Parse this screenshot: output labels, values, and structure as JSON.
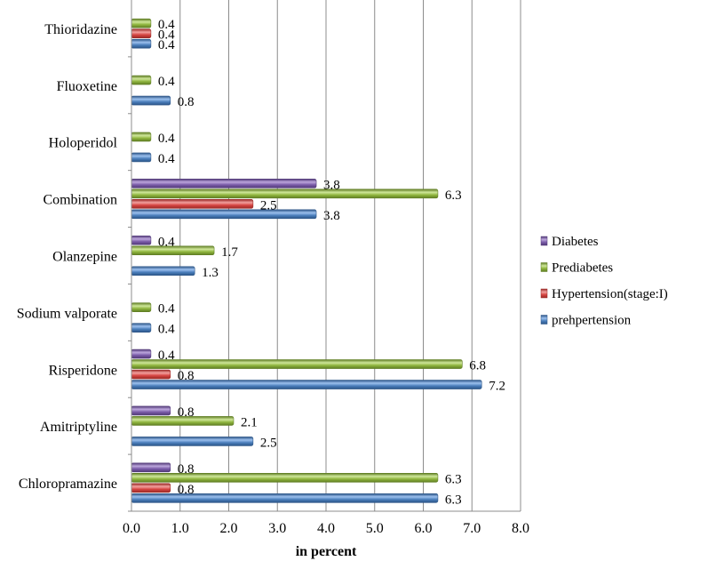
{
  "chart_data": {
    "type": "bar",
    "orientation": "horizontal",
    "xlabel": "in percent",
    "xlim": [
      0,
      8
    ],
    "xticks": [
      "0.0",
      "1.0",
      "2.0",
      "3.0",
      "4.0",
      "5.0",
      "6.0",
      "7.0",
      "8.0"
    ],
    "grid": "vertical",
    "legend_position": "right",
    "categories": [
      "Chloropramazine",
      "Amitriptyline",
      "Risperidone",
      "Sodium valporate",
      "Olanzepine",
      "Combination",
      "Holoperidol",
      "Fluoxetine",
      "Thioridazine"
    ],
    "series": [
      {
        "name": "prehpertension",
        "color": "#4a7ebb",
        "highlight": "#9cc0ee",
        "dark": "#2c5587",
        "values": [
          6.3,
          2.5,
          7.2,
          0.4,
          1.3,
          3.8,
          0.4,
          0.8,
          0.4
        ]
      },
      {
        "name": "Hypertension(stage:I)",
        "color": "#d64541",
        "highlight": "#f2a09e",
        "dark": "#9b2a27",
        "values": [
          0.8,
          null,
          0.8,
          null,
          null,
          2.5,
          null,
          null,
          0.4
        ]
      },
      {
        "name": "Prediabetes",
        "color": "#8fb53e",
        "highlight": "#cfe79a",
        "dark": "#5f7d23",
        "values": [
          6.3,
          2.1,
          6.8,
          0.4,
          1.7,
          6.3,
          0.4,
          0.4,
          0.4
        ]
      },
      {
        "name": "Diabetes",
        "color": "#7a5ba8",
        "highlight": "#bca6dc",
        "dark": "#523a78",
        "values": [
          0.8,
          0.8,
          0.4,
          null,
          0.4,
          3.8,
          null,
          null,
          null
        ]
      }
    ],
    "data_labels": [
      [
        "6.3",
        "2.5",
        "7.2",
        "0.4",
        "1.3",
        "3.8",
        "0.4",
        "0.8",
        "0.4"
      ],
      [
        "0.8",
        null,
        "0.8",
        null,
        null,
        "2.5",
        null,
        null,
        "0.4"
      ],
      [
        "6.3",
        "2.1",
        "6.8",
        "0.4",
        "1.7",
        "6.3",
        "0.4",
        "0.4",
        "0.4"
      ],
      [
        "0.8",
        "0.8",
        "0.4",
        null,
        "0.4",
        "3.8",
        null,
        null,
        null
      ]
    ],
    "legend_order": [
      3,
      2,
      1,
      0
    ]
  }
}
